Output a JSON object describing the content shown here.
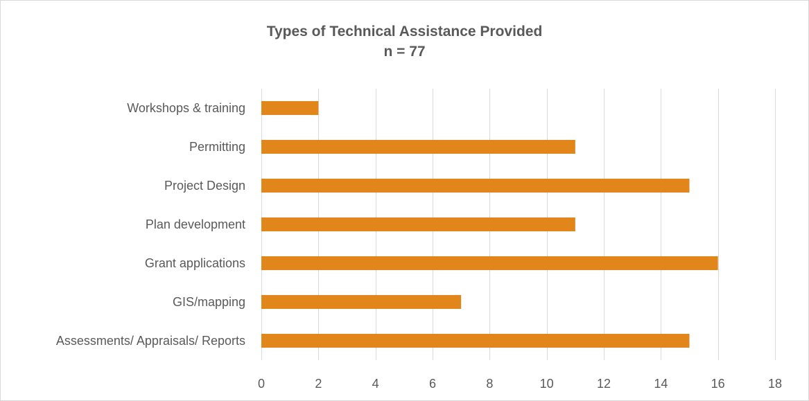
{
  "chart_data": {
    "type": "bar",
    "orientation": "horizontal",
    "title": "Types of Technical Assistance Provided",
    "subtitle": "n = 77",
    "categories": [
      "Workshops & training",
      "Permitting",
      "Project Design",
      "Plan development",
      "Grant applications",
      "GIS/mapping",
      "Assessments/ Appraisals/ Reports"
    ],
    "values": [
      2,
      11,
      15,
      11,
      16,
      7,
      15
    ],
    "xlim": [
      0,
      18
    ],
    "x_ticks": [
      "0",
      "2",
      "4",
      "6",
      "8",
      "10",
      "12",
      "14",
      "16",
      "18"
    ],
    "xlabel": "",
    "ylabel": "",
    "grid": "vertical",
    "legend": "none",
    "bar_color": "#E0861A",
    "grid_color": "#d9d9d9",
    "text_color": "#595959"
  }
}
